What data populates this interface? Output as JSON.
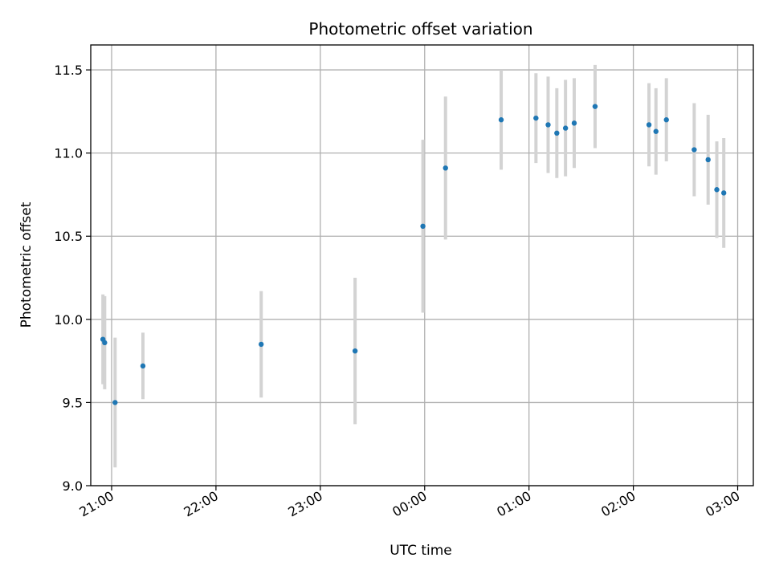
{
  "chart_data": {
    "type": "scatter",
    "title": "Photometric offset variation",
    "xlabel": "UTC time",
    "ylabel": "Photometric offset",
    "x_unit": "UTC time (first point on previous evening, times after 00:00 are the following day)",
    "xlim": [
      "20:48",
      "03:09"
    ],
    "ylim": [
      9.0,
      11.65
    ],
    "x_ticks": [
      "21:00",
      "22:00",
      "23:00",
      "00:00",
      "01:00",
      "02:00",
      "03:00"
    ],
    "y_ticks": [
      "9.0",
      "9.5",
      "10.0",
      "10.5",
      "11.0",
      "11.5"
    ],
    "grid": true,
    "marker_color": "#1f77b4",
    "errorbar_color": "#d3d3d3",
    "points": [
      {
        "x": "20:55",
        "y": 9.88,
        "yerr": 0.27
      },
      {
        "x": "20:56",
        "y": 9.86,
        "yerr": 0.28
      },
      {
        "x": "21:02",
        "y": 9.5,
        "yerr": 0.39
      },
      {
        "x": "21:18",
        "y": 9.72,
        "yerr": 0.2
      },
      {
        "x": "22:26",
        "y": 9.85,
        "yerr": 0.32
      },
      {
        "x": "23:20",
        "y": 9.81,
        "yerr": 0.44
      },
      {
        "x": "23:59",
        "y": 10.56,
        "yerr": 0.52
      },
      {
        "x": "00:12",
        "y": 10.91,
        "yerr": 0.43
      },
      {
        "x": "00:44",
        "y": 11.2,
        "yerr": 0.3
      },
      {
        "x": "01:04",
        "y": 11.21,
        "yerr": 0.27
      },
      {
        "x": "01:11",
        "y": 11.17,
        "yerr": 0.29
      },
      {
        "x": "01:16",
        "y": 11.12,
        "yerr": 0.27
      },
      {
        "x": "01:21",
        "y": 11.15,
        "yerr": 0.29
      },
      {
        "x": "01:26",
        "y": 11.18,
        "yerr": 0.27
      },
      {
        "x": "01:38",
        "y": 11.28,
        "yerr": 0.25
      },
      {
        "x": "02:09",
        "y": 11.17,
        "yerr": 0.25
      },
      {
        "x": "02:13",
        "y": 11.13,
        "yerr": 0.26
      },
      {
        "x": "02:19",
        "y": 11.2,
        "yerr": 0.25
      },
      {
        "x": "02:35",
        "y": 11.02,
        "yerr": 0.28
      },
      {
        "x": "02:43",
        "y": 10.96,
        "yerr": 0.27
      },
      {
        "x": "02:48",
        "y": 10.78,
        "yerr": 0.29
      },
      {
        "x": "02:52",
        "y": 10.76,
        "yerr": 0.33
      }
    ]
  }
}
